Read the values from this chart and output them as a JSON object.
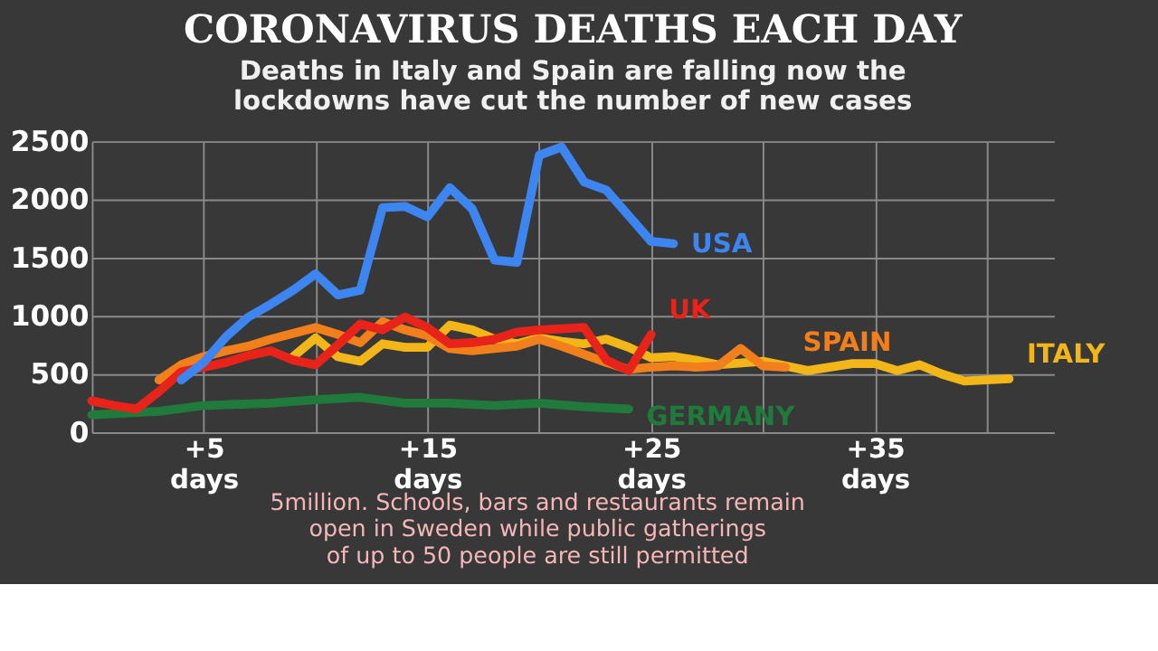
{
  "chart_data": {
    "type": "line",
    "title": "CORONAVIRUS DEATHS EACH DAY",
    "subtitle": "Deaths in Italy and Spain are falling now the\nlockdowns have cut the number of new cases",
    "xlim": [
      0,
      43
    ],
    "ylim": [
      0,
      2500
    ],
    "xticks": [
      {
        "value": 0,
        "label": null
      },
      {
        "value": 5,
        "label": "+5 days"
      },
      {
        "value": 10,
        "label": null
      },
      {
        "value": 15,
        "label": "+15 days"
      },
      {
        "value": 20,
        "label": null
      },
      {
        "value": 25,
        "label": "+25 days"
      },
      {
        "value": 30,
        "label": null
      },
      {
        "value": 35,
        "label": "+35 days"
      },
      {
        "value": 40,
        "label": null
      }
    ],
    "yticks": [
      0,
      500,
      1000,
      1500,
      2000,
      2500
    ],
    "grid": true,
    "legend": false,
    "line_style": "solid",
    "marker": "none",
    "annotations": [
      "5million.  Schools, bars and restaurants remain\nopen in Sweden while public gatherings\nof up to 50 people are still permitted"
    ],
    "series": [
      {
        "name": "GERMANY",
        "color": "#1f7a3b",
        "x": [
          0,
          3,
          5,
          8,
          10,
          12,
          14,
          16,
          18,
          20,
          22,
          24
        ],
        "values": [
          150,
          180,
          230,
          250,
          280,
          300,
          250,
          250,
          230,
          250,
          220,
          200
        ]
      },
      {
        "name": "ITALY",
        "color": "#f2b619",
        "x": [
          9,
          10,
          11,
          12,
          13,
          14,
          15,
          16,
          17,
          18,
          19,
          20,
          21,
          22,
          23,
          24,
          25,
          26,
          27,
          28,
          30,
          32,
          34,
          35,
          36,
          37,
          38,
          39,
          41
        ],
        "values": [
          650,
          810,
          650,
          610,
          760,
          730,
          730,
          920,
          880,
          800,
          760,
          810,
          780,
          760,
          800,
          730,
          640,
          650,
          620,
          580,
          610,
          530,
          590,
          590,
          530,
          580,
          500,
          440,
          460
        ]
      },
      {
        "name": "SPAIN",
        "color": "#f07f1c",
        "x": [
          3,
          4,
          5,
          6,
          7,
          8,
          9,
          10,
          11,
          12,
          13,
          14,
          15,
          16,
          17,
          18,
          19,
          20,
          21,
          22,
          23,
          24,
          25,
          26,
          27,
          28,
          29,
          30,
          31
        ],
        "values": [
          450,
          580,
          650,
          700,
          740,
          800,
          850,
          900,
          840,
          770,
          950,
          880,
          830,
          720,
          700,
          720,
          740,
          800,
          740,
          670,
          600,
          540,
          560,
          570,
          560,
          570,
          720,
          570,
          560
        ]
      },
      {
        "name": "UK",
        "color": "#e8241a",
        "x": [
          0,
          1,
          2,
          3,
          4,
          5,
          6,
          7,
          8,
          9,
          10,
          11,
          12,
          13,
          14,
          15,
          16,
          17,
          18,
          19,
          20,
          21,
          22,
          23,
          24,
          25
        ],
        "values": [
          270,
          230,
          200,
          350,
          520,
          560,
          600,
          660,
          700,
          620,
          580,
          750,
          930,
          880,
          990,
          900,
          760,
          770,
          800,
          860,
          880,
          890,
          900,
          620,
          530,
          840
        ]
      },
      {
        "name": "USA",
        "color": "#3d85f0",
        "x": [
          4,
          5,
          6,
          7,
          8,
          9,
          10,
          11,
          12,
          13,
          14,
          15,
          16,
          17,
          18,
          19,
          20,
          21,
          22,
          23,
          24,
          25,
          26
        ],
        "values": [
          450,
          600,
          820,
          990,
          1100,
          1220,
          1360,
          1180,
          1220,
          1930,
          1940,
          1850,
          2100,
          1920,
          1480,
          1460,
          2380,
          2450,
          2150,
          2080,
          1860,
          1640,
          1620
        ]
      }
    ]
  }
}
